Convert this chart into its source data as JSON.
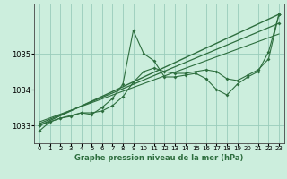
{
  "title": "Graphe pression niveau de la mer (hPa)",
  "bg_color": "#cceedd",
  "grid_color": "#99ccbb",
  "line_color": "#2d6e3e",
  "xlim": [
    -0.5,
    23.5
  ],
  "ylim": [
    1032.5,
    1036.4
  ],
  "xticks": [
    0,
    1,
    2,
    3,
    4,
    5,
    6,
    7,
    8,
    9,
    10,
    11,
    12,
    13,
    14,
    15,
    16,
    17,
    18,
    19,
    20,
    21,
    22,
    23
  ],
  "yticks": [
    1033,
    1034,
    1035
  ],
  "series_jagged": {
    "x": [
      0,
      1,
      2,
      3,
      4,
      5,
      6,
      7,
      8,
      9,
      10,
      11,
      12,
      13,
      14,
      15,
      16,
      17,
      18,
      19,
      20,
      21,
      22,
      23
    ],
    "y": [
      1032.85,
      1033.1,
      1033.2,
      1033.25,
      1033.35,
      1033.3,
      1033.5,
      1033.75,
      1034.15,
      1035.65,
      1035.0,
      1034.8,
      1034.35,
      1034.35,
      1034.4,
      1034.45,
      1034.3,
      1034.0,
      1033.85,
      1034.15,
      1034.35,
      1034.5,
      1035.05,
      1036.1
    ]
  },
  "series_smooth1": {
    "x": [
      0,
      2,
      4,
      5,
      6,
      7,
      8,
      9,
      10,
      11,
      12,
      13,
      14,
      15,
      16,
      17,
      18,
      19,
      20,
      21,
      22,
      23
    ],
    "y": [
      1033.0,
      1033.2,
      1033.35,
      1033.35,
      1033.4,
      1033.55,
      1033.8,
      1034.2,
      1034.5,
      1034.6,
      1034.5,
      1034.45,
      1034.45,
      1034.5,
      1034.55,
      1034.5,
      1034.3,
      1034.25,
      1034.4,
      1034.55,
      1034.85,
      1036.1
    ]
  },
  "series_linear1": {
    "x": [
      0,
      23
    ],
    "y": [
      1033.0,
      1036.1
    ]
  },
  "series_linear2": {
    "x": [
      0,
      23
    ],
    "y": [
      1033.05,
      1035.85
    ]
  },
  "series_linear3": {
    "x": [
      0,
      23
    ],
    "y": [
      1033.1,
      1035.55
    ]
  }
}
